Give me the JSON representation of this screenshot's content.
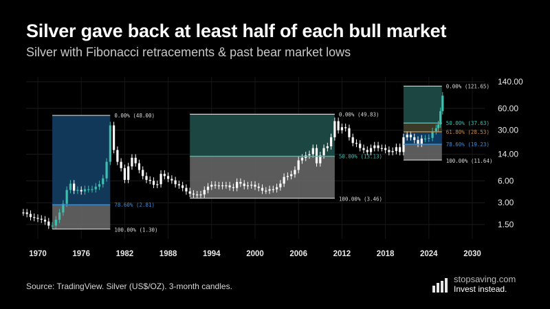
{
  "header": {
    "title": "Silver gave back at least half of each bull market",
    "subtitle": "Silver with Fibonacci retracements & past bear market lows"
  },
  "footer": {
    "source": "Source: TradingView. Silver (US$/OZ). 3-month candles.",
    "brand_name": "stopsaving.com",
    "brand_tagline": "Invest instead."
  },
  "colors": {
    "background": "#000000",
    "bull_zone_1": "#123a5e",
    "bull_zone_teal": "#1d4a46",
    "retrace_zone": "#6b6b6b",
    "line_teal": "#3fbfb0",
    "line_blue": "#3a8fd6",
    "line_orange": "#d08a3a",
    "candle": "#ffffff",
    "candle_up_teal": "#3fbfb0"
  },
  "chart_data": {
    "type": "candlestick",
    "title": "Silver gave back at least half of each bull market",
    "subtitle": "Silver with Fibonacci retracements & past bear market lows",
    "xlabel": "",
    "ylabel": "",
    "y_scale": "log",
    "ylim": [
      1.2,
      150
    ],
    "xlim": [
      1968,
      2032
    ],
    "x_ticks": [
      "1970",
      "1976",
      "1982",
      "1988",
      "1994",
      "2000",
      "2006",
      "2012",
      "2018",
      "2024",
      "2030"
    ],
    "y_ticks": [
      "140.00",
      "60.00",
      "30.00",
      "14.00",
      "6.00",
      "3.00",
      "1.50"
    ],
    "y_tick_values": [
      140,
      60,
      30,
      14,
      6,
      3,
      1.5
    ],
    "retracements": [
      {
        "start": 1972,
        "end": 1980,
        "high": 48.0,
        "low": 1.3,
        "high_label": "0.00% (48.00)",
        "low_label": "100.00% (1.30)",
        "level_label": "78.60% (2.81)",
        "level_value": 2.81,
        "level_color": "blue"
      },
      {
        "start": 1991,
        "end": 2011,
        "high": 49.83,
        "low": 3.46,
        "high_label": "0.00% (49.83)",
        "low_label": "100.00% (3.46)",
        "level_label": "50.00% (13.13)",
        "level_value": 13.13,
        "level_color": "teal"
      },
      {
        "start": 2020.5,
        "end": 2025.8,
        "high": 121.65,
        "low": 11.64,
        "high_label": "0.00% (121.65)",
        "low_label": "100.00% (11.64)",
        "levels": [
          {
            "label": "50.00% (37.63)",
            "value": 37.63,
            "color": "teal"
          },
          {
            "label": "61.80% (28.53)",
            "value": 28.53,
            "color": "orange"
          },
          {
            "label": "78.60% (19.23)",
            "value": 19.23,
            "color": "blue"
          }
        ]
      }
    ],
    "series": [
      {
        "points": [
          [
            1968.0,
            2.2
          ],
          [
            1968.5,
            2.1
          ],
          [
            1969.0,
            1.9
          ],
          [
            1969.5,
            1.85
          ],
          [
            1970.0,
            1.8
          ],
          [
            1970.5,
            1.75
          ],
          [
            1971.0,
            1.65
          ],
          [
            1971.5,
            1.45
          ],
          [
            1972.0,
            1.45
          ],
          [
            1972.5,
            1.75
          ],
          [
            1973.0,
            2.2
          ],
          [
            1973.5,
            2.9
          ],
          [
            1974.0,
            4.5
          ],
          [
            1974.5,
            5.5
          ],
          [
            1975.0,
            4.4
          ],
          [
            1975.5,
            4.5
          ],
          [
            1976.0,
            4.3
          ],
          [
            1976.5,
            4.6
          ],
          [
            1977.0,
            4.6
          ],
          [
            1977.5,
            4.6
          ],
          [
            1978.0,
            5.0
          ],
          [
            1978.5,
            5.4
          ],
          [
            1979.0,
            6.5
          ],
          [
            1979.5,
            11.0
          ],
          [
            1980.0,
            35.0
          ],
          [
            1980.5,
            16.0
          ],
          [
            1981.0,
            11.0
          ],
          [
            1981.5,
            9.0
          ],
          [
            1982.0,
            6.2
          ],
          [
            1982.5,
            9.5
          ],
          [
            1983.0,
            12.5
          ],
          [
            1983.5,
            10.5
          ],
          [
            1984.0,
            8.5
          ],
          [
            1984.5,
            7.0
          ],
          [
            1985.0,
            6.2
          ],
          [
            1985.5,
            6.0
          ],
          [
            1986.0,
            5.3
          ],
          [
            1986.5,
            5.4
          ],
          [
            1987.0,
            7.5
          ],
          [
            1987.5,
            7.0
          ],
          [
            1988.0,
            6.4
          ],
          [
            1988.5,
            6.1
          ],
          [
            1989.0,
            5.4
          ],
          [
            1989.5,
            5.2
          ],
          [
            1990.0,
            4.8
          ],
          [
            1990.5,
            4.3
          ],
          [
            1991.0,
            4.0
          ],
          [
            1991.5,
            3.9
          ],
          [
            1992.0,
            3.8
          ],
          [
            1992.5,
            3.9
          ],
          [
            1993.0,
            4.5
          ],
          [
            1993.5,
            5.0
          ],
          [
            1994.0,
            5.3
          ],
          [
            1994.5,
            5.2
          ],
          [
            1995.0,
            5.1
          ],
          [
            1995.5,
            5.2
          ],
          [
            1996.0,
            5.2
          ],
          [
            1996.5,
            4.9
          ],
          [
            1997.0,
            4.8
          ],
          [
            1997.5,
            5.8
          ],
          [
            1998.0,
            5.5
          ],
          [
            1998.5,
            5.1
          ],
          [
            1999.0,
            5.2
          ],
          [
            1999.5,
            5.3
          ],
          [
            2000.0,
            5.0
          ],
          [
            2000.5,
            4.8
          ],
          [
            2001.0,
            4.4
          ],
          [
            2001.5,
            4.4
          ],
          [
            2002.0,
            4.6
          ],
          [
            2002.5,
            4.6
          ],
          [
            2003.0,
            4.9
          ],
          [
            2003.5,
            5.5
          ],
          [
            2004.0,
            6.8
          ],
          [
            2004.5,
            7.0
          ],
          [
            2005.0,
            7.4
          ],
          [
            2005.5,
            8.5
          ],
          [
            2006.0,
            11.5
          ],
          [
            2006.5,
            12.5
          ],
          [
            2007.0,
            13.5
          ],
          [
            2007.5,
            14.0
          ],
          [
            2008.0,
            17.0
          ],
          [
            2008.5,
            10.5
          ],
          [
            2009.0,
            13.5
          ],
          [
            2009.5,
            17.0
          ],
          [
            2010.0,
            18.0
          ],
          [
            2010.5,
            24.0
          ],
          [
            2011.0,
            40.0
          ],
          [
            2011.5,
            30.0
          ],
          [
            2012.0,
            33.0
          ],
          [
            2012.5,
            32.0
          ],
          [
            2013.0,
            24.0
          ],
          [
            2013.5,
            20.0
          ],
          [
            2014.0,
            19.5
          ],
          [
            2014.5,
            17.0
          ],
          [
            2015.0,
            16.0
          ],
          [
            2015.5,
            15.0
          ],
          [
            2016.0,
            17.0
          ],
          [
            2016.5,
            18.5
          ],
          [
            2017.0,
            17.0
          ],
          [
            2017.5,
            17.0
          ],
          [
            2018.0,
            16.0
          ],
          [
            2018.5,
            15.0
          ],
          [
            2019.0,
            15.5
          ],
          [
            2019.5,
            17.5
          ],
          [
            2020.0,
            15.0
          ],
          [
            2020.5,
            24.0
          ],
          [
            2021.0,
            26.0
          ],
          [
            2021.5,
            24.0
          ],
          [
            2022.0,
            22.0
          ],
          [
            2022.5,
            19.5
          ],
          [
            2023.0,
            23.0
          ],
          [
            2023.5,
            23.0
          ],
          [
            2024.0,
            23.5
          ],
          [
            2024.5,
            29.0
          ],
          [
            2025.0,
            32.0
          ],
          [
            2025.3,
            36.0
          ],
          [
            2025.6,
            55.0
          ],
          [
            2025.9,
            90.0
          ]
        ]
      }
    ]
  }
}
